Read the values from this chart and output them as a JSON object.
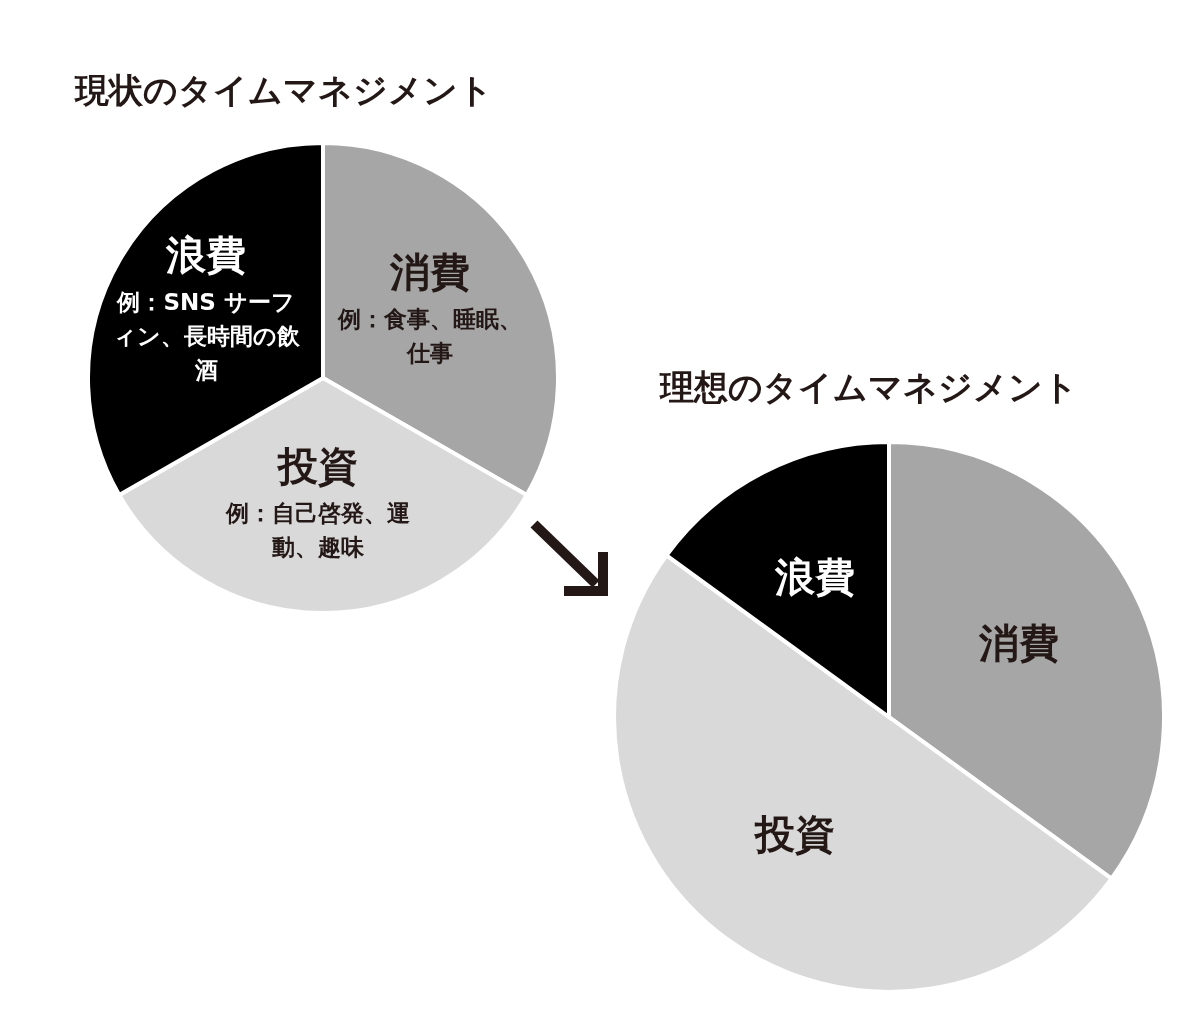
{
  "chart_data": [
    {
      "type": "pie",
      "title": "現状のタイムマネジメント",
      "categories": [
        "消費",
        "投資",
        "浪費"
      ],
      "values": [
        33.3,
        33.4,
        33.3
      ],
      "colors": [
        "#a6a6a6",
        "#d9d9d9",
        "#000000"
      ],
      "annotations": [
        "例：食事、睡眠、仕事",
        "例：自己啓発、運動、趣味",
        "例：SNS サーフィン、長時間の飲酒"
      ]
    },
    {
      "type": "pie",
      "title": "理想のタイムマネジメント",
      "categories": [
        "消費",
        "投資",
        "浪費"
      ],
      "values": [
        35,
        50,
        15
      ],
      "colors": [
        "#a6a6a6",
        "#d9d9d9",
        "#000000"
      ]
    }
  ]
}
